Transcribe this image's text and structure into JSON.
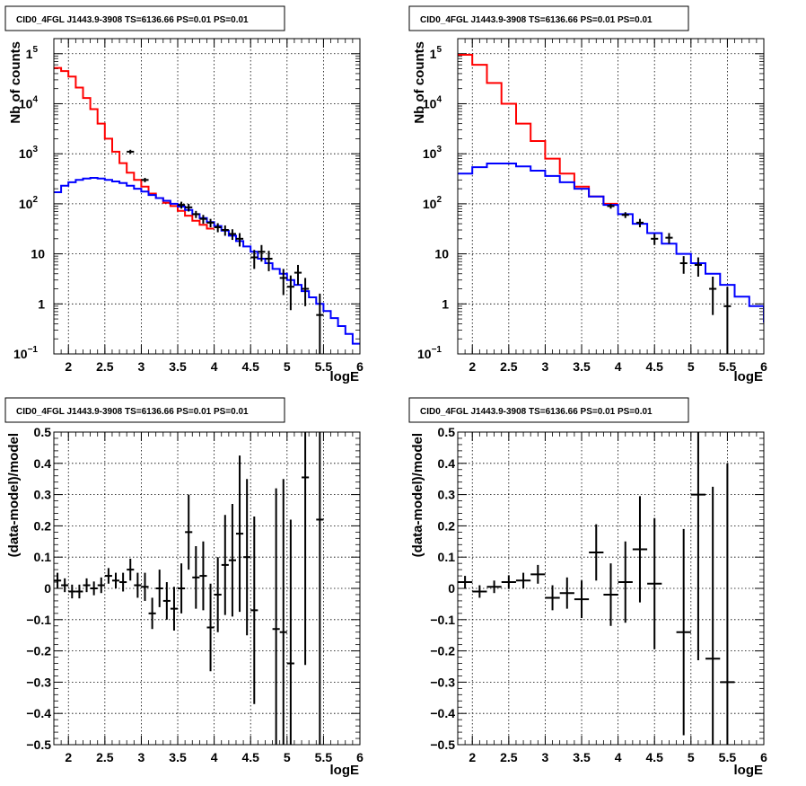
{
  "colors": {
    "model": "#0000ff",
    "total": "#ff0000",
    "data": "#000000",
    "grid": "#000000"
  },
  "chart_data": [
    {
      "type": "line",
      "title": "CID0_4FGL J1443.9-3908 TS=6136.66 PS=0.01 PS=0.01",
      "xlabel": "logE",
      "ylabel": "Nb of counts",
      "yscale": "log",
      "xlim": [
        1.8,
        6.0
      ],
      "ylim": [
        0.1,
        200000
      ],
      "grid": true,
      "xticks": [
        "2",
        "2.5",
        "3",
        "3.5",
        "4",
        "4.5",
        "5",
        "5.5",
        "6"
      ],
      "yticks": [
        "10",
        "1",
        "10",
        "10",
        "10",
        "10",
        "1",
        "10"
      ],
      "series": [
        {
          "key": "total",
          "style": "step",
          "edges": [
            1.8,
            1.9,
            2.0,
            2.1,
            2.2,
            2.3,
            2.4,
            2.5,
            2.6,
            2.7,
            2.8,
            2.9,
            3.0,
            3.1,
            3.2,
            3.3,
            3.4,
            3.5,
            3.6,
            3.7,
            3.8,
            3.9,
            4.0
          ],
          "values": [
            52000,
            45000,
            35000,
            21000,
            13000,
            7800,
            4000,
            2000,
            1100,
            650,
            420,
            300,
            220,
            160,
            130,
            105,
            90,
            72,
            58,
            46,
            38,
            32
          ]
        },
        {
          "key": "model",
          "style": "step",
          "edges": [
            1.8,
            1.9,
            2.0,
            2.1,
            2.2,
            2.3,
            2.4,
            2.5,
            2.6,
            2.7,
            2.8,
            2.9,
            3.0,
            3.1,
            3.2,
            3.3,
            3.4,
            3.5,
            3.6,
            3.7,
            3.8,
            3.9,
            4.0,
            4.1,
            4.2,
            4.3,
            4.4,
            4.5,
            4.6,
            4.7,
            4.8,
            4.9,
            5.0,
            5.1,
            5.2,
            5.3,
            5.4,
            5.5,
            5.6,
            5.7,
            5.8,
            5.9,
            6.0
          ],
          "values": [
            170,
            230,
            270,
            300,
            320,
            330,
            320,
            300,
            280,
            260,
            230,
            200,
            175,
            150,
            130,
            115,
            100,
            88,
            75,
            62,
            52,
            43,
            36,
            29,
            23,
            18,
            14,
            11,
            8,
            6.5,
            5,
            4,
            3,
            2.4,
            1.8,
            1.35,
            1.0,
            0.72,
            0.52,
            0.36,
            0.25,
            0.16
          ]
        },
        {
          "key": "data",
          "style": "errorbar",
          "points": [
            {
              "x": 2.85,
              "y": 1100,
              "lo": 1000,
              "hi": 1200
            },
            {
              "x": 3.05,
              "y": 300,
              "lo": 270,
              "hi": 330
            },
            {
              "x": 3.55,
              "y": 95,
              "lo": 80,
              "hi": 110
            },
            {
              "x": 3.65,
              "y": 85,
              "lo": 70,
              "hi": 100
            },
            {
              "x": 3.75,
              "y": 62,
              "lo": 52,
              "hi": 72
            },
            {
              "x": 3.85,
              "y": 50,
              "lo": 40,
              "hi": 60
            },
            {
              "x": 3.95,
              "y": 42,
              "lo": 34,
              "hi": 50
            },
            {
              "x": 4.05,
              "y": 34,
              "lo": 27,
              "hi": 41
            },
            {
              "x": 4.15,
              "y": 30,
              "lo": 23,
              "hi": 37
            },
            {
              "x": 4.25,
              "y": 25,
              "lo": 19,
              "hi": 31
            },
            {
              "x": 4.35,
              "y": 20,
              "lo": 14,
              "hi": 26
            },
            {
              "x": 4.55,
              "y": 8.5,
              "lo": 5,
              "hi": 12
            },
            {
              "x": 4.65,
              "y": 11,
              "lo": 7,
              "hi": 15
            },
            {
              "x": 4.75,
              "y": 8,
              "lo": 4.5,
              "hi": 11.5
            },
            {
              "x": 4.95,
              "y": 3.3,
              "lo": 1.5,
              "hi": 5
            },
            {
              "x": 5.05,
              "y": 2.2,
              "lo": 0.75,
              "hi": 3.7
            },
            {
              "x": 5.15,
              "y": 4.2,
              "lo": 2.4,
              "hi": 6
            },
            {
              "x": 5.25,
              "y": 2.0,
              "lo": 0.9,
              "hi": 3.3
            },
            {
              "x": 5.45,
              "y": 0.6,
              "lo": 0.1,
              "hi": 1.6
            }
          ]
        }
      ]
    },
    {
      "type": "line",
      "title": "CID0_4FGL J1443.9-3908 TS=6136.66 PS=0.01 PS=0.01",
      "xlabel": "logE",
      "ylabel": "Nb of counts",
      "yscale": "log",
      "xlim": [
        1.8,
        6.0
      ],
      "ylim": [
        0.1,
        200000
      ],
      "grid": true,
      "xticks": [
        "2",
        "2.5",
        "3",
        "3.5",
        "4",
        "4.5",
        "5",
        "5.5",
        "6"
      ],
      "yticks": [
        "10",
        "1",
        "10",
        "10",
        "10",
        "10",
        "1",
        "10"
      ],
      "series": [
        {
          "key": "total",
          "style": "step",
          "edges": [
            1.8,
            2.0,
            2.2,
            2.4,
            2.6,
            2.8,
            3.0,
            3.2,
            3.4,
            3.6,
            3.8,
            4.0
          ],
          "values": [
            95000,
            60000,
            26000,
            10000,
            4000,
            1800,
            800,
            400,
            220,
            140,
            100
          ]
        },
        {
          "key": "model",
          "style": "step",
          "edges": [
            1.8,
            2.0,
            2.2,
            2.4,
            2.6,
            2.8,
            3.0,
            3.2,
            3.4,
            3.6,
            3.8,
            4.0,
            4.2,
            4.4,
            4.6,
            4.8,
            5.0,
            5.2,
            5.4,
            5.6,
            5.8,
            6.0
          ],
          "values": [
            400,
            540,
            640,
            640,
            560,
            460,
            360,
            270,
            200,
            140,
            95,
            62,
            40,
            26,
            16,
            10,
            6.5,
            4,
            2.4,
            1.4,
            0.9,
            0.42
          ]
        },
        {
          "key": "data",
          "style": "errorbar",
          "points": [
            {
              "x": 3.9,
              "y": 90,
              "lo": 80,
              "hi": 100
            },
            {
              "x": 4.1,
              "y": 60,
              "lo": 52,
              "hi": 68
            },
            {
              "x": 4.3,
              "y": 42,
              "lo": 34,
              "hi": 50
            },
            {
              "x": 4.5,
              "y": 20,
              "lo": 15,
              "hi": 25
            },
            {
              "x": 4.7,
              "y": 21,
              "lo": 16,
              "hi": 26
            },
            {
              "x": 4.9,
              "y": 6.5,
              "lo": 4,
              "hi": 9
            },
            {
              "x": 5.1,
              "y": 6,
              "lo": 3.5,
              "hi": 8.5
            },
            {
              "x": 5.3,
              "y": 2.0,
              "lo": 0.6,
              "hi": 3.5
            },
            {
              "x": 5.5,
              "y": 0.9,
              "lo": 0.1,
              "hi": 2.2
            }
          ]
        }
      ]
    },
    {
      "type": "scatter",
      "title": "CID0_4FGL J1443.9-3908 TS=6136.66 PS=0.01 PS=0.01",
      "xlabel": "logE",
      "ylabel": "(data-model)/model",
      "xlim": [
        1.8,
        6.0
      ],
      "ylim": [
        -0.5,
        0.5
      ],
      "grid": true,
      "xticks": [
        "2",
        "2.5",
        "3",
        "3.5",
        "4",
        "4.5",
        "5",
        "5.5",
        "6"
      ],
      "yticks": [
        "−0.5",
        "−0.4",
        "−0.3",
        "−0.2",
        "−0.1",
        "0",
        "0.1",
        "0.2",
        "0.3",
        "0.4",
        "0.5"
      ],
      "series": [
        {
          "key": "data",
          "style": "errorbar",
          "binwidth": 0.1,
          "points": [
            {
              "x": 1.85,
              "y": 0.025,
              "err": 0.025
            },
            {
              "x": 1.95,
              "y": 0.01,
              "err": 0.022
            },
            {
              "x": 2.05,
              "y": -0.01,
              "err": 0.022
            },
            {
              "x": 2.15,
              "y": -0.01,
              "err": 0.022
            },
            {
              "x": 2.25,
              "y": 0.01,
              "err": 0.022
            },
            {
              "x": 2.35,
              "y": 0.0,
              "err": 0.022
            },
            {
              "x": 2.45,
              "y": 0.01,
              "err": 0.025
            },
            {
              "x": 2.55,
              "y": 0.04,
              "err": 0.025
            },
            {
              "x": 2.65,
              "y": 0.025,
              "err": 0.025
            },
            {
              "x": 2.75,
              "y": 0.02,
              "err": 0.03
            },
            {
              "x": 2.85,
              "y": 0.06,
              "err": 0.035
            },
            {
              "x": 2.95,
              "y": 0.01,
              "err": 0.04
            },
            {
              "x": 3.05,
              "y": 0.005,
              "err": 0.045
            },
            {
              "x": 3.15,
              "y": -0.08,
              "err": 0.05
            },
            {
              "x": 3.25,
              "y": 0.0,
              "err": 0.06
            },
            {
              "x": 3.35,
              "y": -0.04,
              "err": 0.06
            },
            {
              "x": 3.45,
              "y": -0.065,
              "err": 0.07
            },
            {
              "x": 3.55,
              "y": 0.0,
              "err": 0.08
            },
            {
              "x": 3.65,
              "y": 0.18,
              "err": 0.12
            },
            {
              "x": 3.75,
              "y": 0.035,
              "err": 0.1
            },
            {
              "x": 3.85,
              "y": 0.04,
              "err": 0.11
            },
            {
              "x": 3.95,
              "y": -0.125,
              "err": 0.14
            },
            {
              "x": 4.05,
              "y": -0.02,
              "err": 0.12
            },
            {
              "x": 4.15,
              "y": 0.075,
              "err": 0.16
            },
            {
              "x": 4.25,
              "y": 0.09,
              "err": 0.18
            },
            {
              "x": 4.35,
              "y": 0.175,
              "err": 0.25
            },
            {
              "x": 4.45,
              "y": 0.1,
              "err": 0.25
            },
            {
              "x": 4.55,
              "y": -0.07,
              "err": 0.3
            },
            {
              "x": 4.85,
              "y": -0.13,
              "err": 0.45
            },
            {
              "x": 4.95,
              "y": -0.14,
              "err": 0.49
            },
            {
              "x": 5.05,
              "y": -0.24,
              "err": 0.46
            },
            {
              "x": 5.25,
              "y": 0.355,
              "err": 0.6
            },
            {
              "x": 5.45,
              "y": 0.22,
              "err": 0.9
            }
          ]
        }
      ]
    },
    {
      "type": "scatter",
      "title": "CID0_4FGL J1443.9-3908 TS=6136.66 PS=0.01 PS=0.01",
      "xlabel": "logE",
      "ylabel": "(data-model)/model",
      "xlim": [
        1.8,
        6.0
      ],
      "ylim": [
        -0.5,
        0.5
      ],
      "grid": true,
      "xticks": [
        "2",
        "2.5",
        "3",
        "3.5",
        "4",
        "4.5",
        "5",
        "5.5",
        "6"
      ],
      "yticks": [
        "−0.5",
        "−0.4",
        "−0.3",
        "−0.2",
        "−0.1",
        "0",
        "0.1",
        "0.2",
        "0.3",
        "0.4",
        "0.5"
      ],
      "series": [
        {
          "key": "data",
          "style": "errorbar",
          "binwidth": 0.2,
          "points": [
            {
              "x": 1.9,
              "y": 0.02,
              "err": 0.02
            },
            {
              "x": 2.1,
              "y": -0.01,
              "err": 0.02
            },
            {
              "x": 2.3,
              "y": 0.005,
              "err": 0.02
            },
            {
              "x": 2.5,
              "y": 0.02,
              "err": 0.022
            },
            {
              "x": 2.7,
              "y": 0.025,
              "err": 0.025
            },
            {
              "x": 2.9,
              "y": 0.045,
              "err": 0.03
            },
            {
              "x": 3.1,
              "y": -0.03,
              "err": 0.04
            },
            {
              "x": 3.3,
              "y": -0.015,
              "err": 0.05
            },
            {
              "x": 3.5,
              "y": -0.035,
              "err": 0.06
            },
            {
              "x": 3.7,
              "y": 0.115,
              "err": 0.09
            },
            {
              "x": 3.9,
              "y": -0.02,
              "err": 0.1
            },
            {
              "x": 4.1,
              "y": 0.02,
              "err": 0.13
            },
            {
              "x": 4.3,
              "y": 0.125,
              "err": 0.17
            },
            {
              "x": 4.5,
              "y": 0.015,
              "err": 0.21
            },
            {
              "x": 4.9,
              "y": -0.14,
              "err": 0.33
            },
            {
              "x": 5.1,
              "y": 0.3,
              "err": 0.53
            },
            {
              "x": 5.3,
              "y": -0.225,
              "err": 0.55
            },
            {
              "x": 5.5,
              "y": -0.3,
              "err": 0.7
            }
          ]
        }
      ]
    }
  ]
}
